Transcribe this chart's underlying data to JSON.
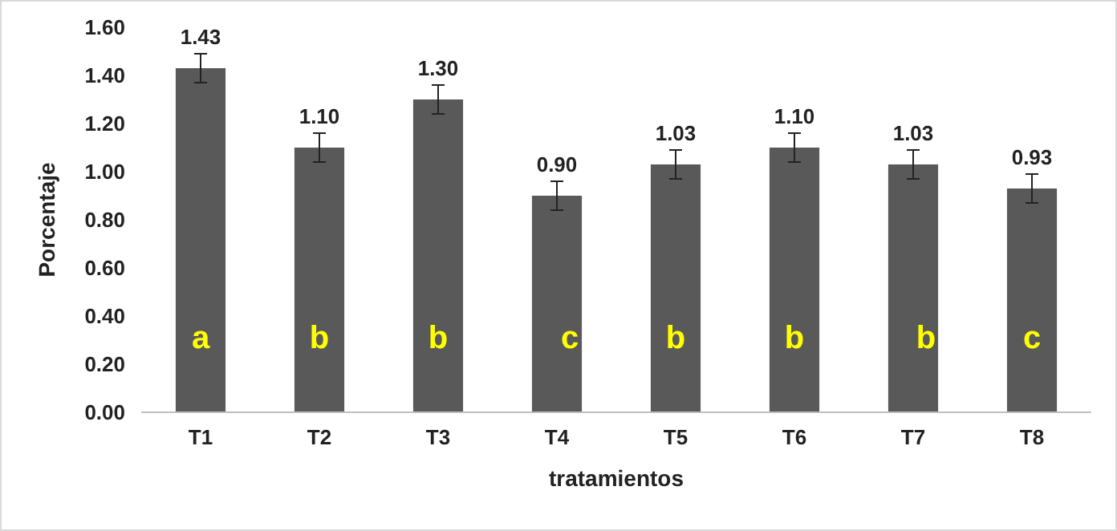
{
  "chart_data": {
    "type": "bar",
    "xlabel": "tratamientos",
    "ylabel": "Porcentaje",
    "categories": [
      "T1",
      "T2",
      "T3",
      "T4",
      "T5",
      "T6",
      "T7",
      "T8"
    ],
    "values": [
      1.43,
      1.1,
      1.3,
      0.9,
      1.03,
      1.1,
      1.03,
      0.93
    ],
    "errors": [
      0.06,
      0.06,
      0.06,
      0.06,
      0.06,
      0.06,
      0.06,
      0.06
    ],
    "color": "#595959",
    "value_labels": [
      "1.43",
      "1.10",
      "1.30",
      "0.90",
      "1.03",
      "1.10",
      "1.03",
      "0.93"
    ],
    "ylim": [
      0,
      1.6
    ],
    "yticks": [
      {
        "value": 0,
        "label": "0.00"
      },
      {
        "value": 0.2,
        "label": "0.20"
      },
      {
        "value": 0.4,
        "label": "0.40"
      },
      {
        "value": 0.6,
        "label": "0.60"
      },
      {
        "value": 0.8,
        "label": "0.80"
      },
      {
        "value": 1,
        "label": "1.00"
      },
      {
        "value": 1.2,
        "label": "1.20"
      },
      {
        "value": 1.4,
        "label": "1.40"
      },
      {
        "value": 1.6,
        "label": "1.60"
      }
    ],
    "grid": false,
    "annotations": [
      "a",
      "b",
      "b",
      "c",
      "b",
      "b",
      "b",
      "c"
    ]
  }
}
